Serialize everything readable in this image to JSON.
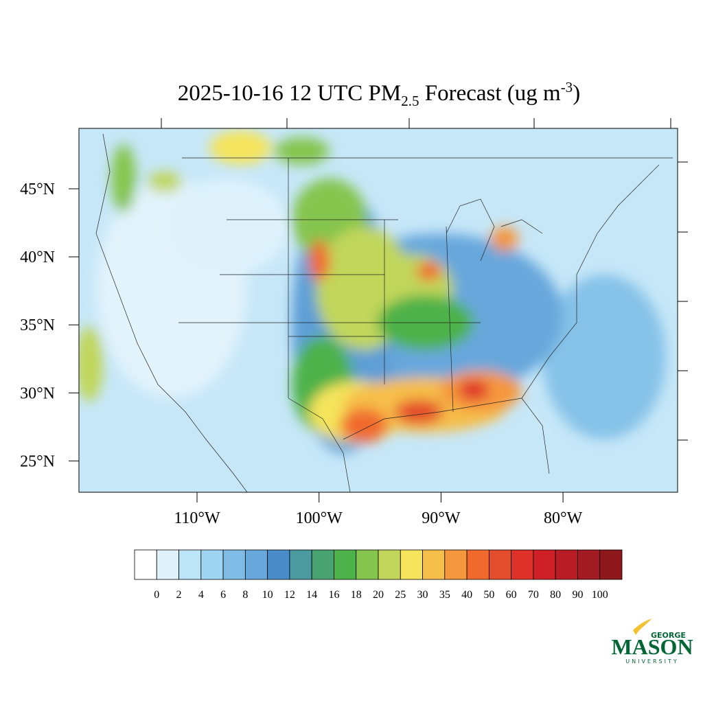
{
  "title": {
    "main": "2025-10-16 12 UTC PM",
    "sub": "2.5",
    "rest": " Forecast (ug m",
    "sup": "-3",
    "close": ")"
  },
  "lat_labels": [
    "45°N",
    "40°N",
    "35°N",
    "30°N",
    "25°N"
  ],
  "lon_labels": [
    "110°W",
    "100°W",
    "90°W",
    "80°W"
  ],
  "colorbar": {
    "levels": [
      0,
      2,
      4,
      6,
      8,
      10,
      12,
      14,
      16,
      18,
      20,
      25,
      30,
      35,
      40,
      50,
      60,
      70,
      80,
      90,
      100
    ],
    "colors": [
      "#ffffff",
      "#dff2fc",
      "#bde5f8",
      "#9dd5f3",
      "#80bce6",
      "#67a7dc",
      "#4a8cc9",
      "#4a9aa0",
      "#48a271",
      "#4db24a",
      "#85c54e",
      "#c1d65a",
      "#f5e45c",
      "#f6be4a",
      "#f5973d",
      "#f06a2d",
      "#e44d2c",
      "#dd3129",
      "#cf2027",
      "#b91c25",
      "#a31b22",
      "#8e171c"
    ]
  },
  "logo": {
    "top": "GEORGE",
    "main": "MASON",
    "bottom": "UNIVERSITY"
  }
}
